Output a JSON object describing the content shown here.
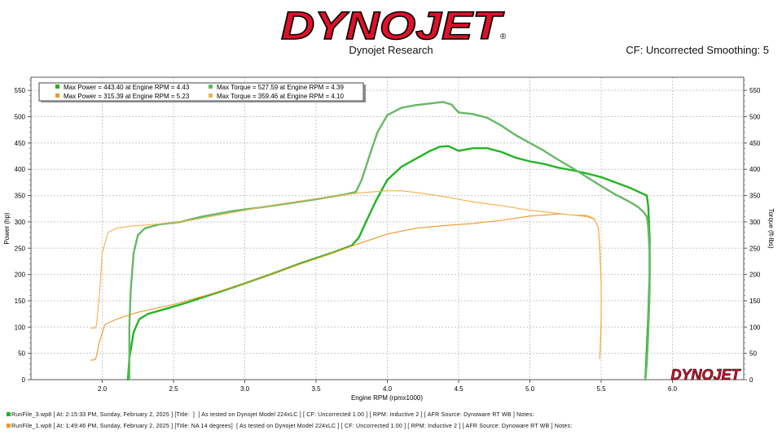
{
  "header": {
    "logo_text": "DYNOJET",
    "subtitle": "Dynojet Research",
    "cf_text": "CF: Uncorrected Smoothing: 5"
  },
  "colors": {
    "run3": "#22b422",
    "run3_torque": "#66b866",
    "run1": "#f0962a",
    "run1_torque": "#f5b04a",
    "logo_red": "#e0102a",
    "grid": "#c8c8c8"
  },
  "legend": [
    {
      "text": "Max Power = 443.40 at Engine RPM = 4.43",
      "color": "#22b422"
    },
    {
      "text": "Max Torque = 527.59 at Engine RPM = 4.39",
      "color": "#66b866"
    },
    {
      "text": "Max Power = 315.39 at Engine RPM = 5.23",
      "color": "#f0962a"
    },
    {
      "text": "Max Torque = 359.46 at Engine RPM = 4.10",
      "color": "#f5b04a"
    }
  ],
  "chart_data": {
    "type": "line",
    "xlabel": "Engine RPM (rpmx1000)",
    "ylabel": "Power (hp)",
    "ylabel_right": "Torque (ft-lbs)",
    "xlim": [
      1.5,
      6.5
    ],
    "ylim": [
      0,
      575
    ],
    "x_ticks": [
      2.0,
      2.5,
      3.0,
      3.5,
      4.0,
      4.5,
      5.0,
      5.5,
      6.0
    ],
    "y_ticks": [
      0,
      50,
      100,
      150,
      200,
      250,
      300,
      350,
      400,
      450,
      500,
      550
    ],
    "grid": true,
    "legend_position": "top-left",
    "watermark": "DYNOJET",
    "series": [
      {
        "name": "RunFile_3 Power",
        "axis": "left",
        "color": "#22b422",
        "points": [
          [
            2.18,
            0
          ],
          [
            2.19,
            40
          ],
          [
            2.22,
            90
          ],
          [
            2.26,
            115
          ],
          [
            2.32,
            125
          ],
          [
            2.45,
            135
          ],
          [
            2.6,
            147
          ],
          [
            2.8,
            165
          ],
          [
            3.0,
            183
          ],
          [
            3.2,
            202
          ],
          [
            3.4,
            222
          ],
          [
            3.6,
            240
          ],
          [
            3.75,
            255
          ],
          [
            3.8,
            270
          ],
          [
            3.85,
            300
          ],
          [
            3.92,
            340
          ],
          [
            4.0,
            380
          ],
          [
            4.1,
            405
          ],
          [
            4.2,
            420
          ],
          [
            4.3,
            435
          ],
          [
            4.37,
            443
          ],
          [
            4.43,
            444
          ],
          [
            4.5,
            435
          ],
          [
            4.6,
            440
          ],
          [
            4.7,
            440
          ],
          [
            4.8,
            433
          ],
          [
            4.9,
            422
          ],
          [
            5.0,
            415
          ],
          [
            5.1,
            410
          ],
          [
            5.2,
            403
          ],
          [
            5.3,
            398
          ],
          [
            5.4,
            392
          ],
          [
            5.5,
            385
          ],
          [
            5.6,
            375
          ],
          [
            5.7,
            365
          ],
          [
            5.78,
            355
          ],
          [
            5.82,
            350
          ],
          [
            5.83,
            330
          ],
          [
            5.84,
            270
          ],
          [
            5.84,
            200
          ],
          [
            5.83,
            120
          ],
          [
            5.82,
            60
          ],
          [
            5.81,
            0
          ]
        ]
      },
      {
        "name": "RunFile_3 Torque",
        "axis": "right",
        "color": "#66b866",
        "points": [
          [
            2.19,
            0
          ],
          [
            2.19,
            100
          ],
          [
            2.2,
            170
          ],
          [
            2.22,
            240
          ],
          [
            2.25,
            275
          ],
          [
            2.3,
            288
          ],
          [
            2.4,
            295
          ],
          [
            2.55,
            300
          ],
          [
            2.7,
            310
          ],
          [
            2.9,
            320
          ],
          [
            3.1,
            327
          ],
          [
            3.3,
            335
          ],
          [
            3.5,
            343
          ],
          [
            3.7,
            352
          ],
          [
            3.78,
            357
          ],
          [
            3.82,
            380
          ],
          [
            3.88,
            430
          ],
          [
            3.93,
            470
          ],
          [
            4.0,
            503
          ],
          [
            4.1,
            517
          ],
          [
            4.2,
            522
          ],
          [
            4.3,
            525
          ],
          [
            4.39,
            528
          ],
          [
            4.45,
            523
          ],
          [
            4.5,
            508
          ],
          [
            4.6,
            505
          ],
          [
            4.7,
            498
          ],
          [
            4.8,
            483
          ],
          [
            4.9,
            465
          ],
          [
            5.0,
            450
          ],
          [
            5.1,
            435
          ],
          [
            5.2,
            418
          ],
          [
            5.3,
            402
          ],
          [
            5.4,
            385
          ],
          [
            5.5,
            368
          ],
          [
            5.6,
            352
          ],
          [
            5.7,
            338
          ],
          [
            5.76,
            328
          ],
          [
            5.8,
            318
          ],
          [
            5.82,
            310
          ],
          [
            5.83,
            290
          ],
          [
            5.84,
            240
          ],
          [
            5.84,
            170
          ],
          [
            5.83,
            90
          ],
          [
            5.82,
            30
          ],
          [
            5.81,
            0
          ]
        ]
      },
      {
        "name": "RunFile_1 Power",
        "axis": "left",
        "color": "#f0962a",
        "points": [
          [
            1.92,
            37
          ],
          [
            1.95,
            38
          ],
          [
            1.96,
            45
          ],
          [
            1.98,
            72
          ],
          [
            2.02,
            105
          ],
          [
            2.1,
            115
          ],
          [
            2.25,
            128
          ],
          [
            2.5,
            143
          ],
          [
            2.75,
            162
          ],
          [
            3.0,
            183
          ],
          [
            3.25,
            207
          ],
          [
            3.5,
            230
          ],
          [
            3.75,
            254
          ],
          [
            4.0,
            277
          ],
          [
            4.2,
            288
          ],
          [
            4.4,
            293
          ],
          [
            4.6,
            297
          ],
          [
            4.8,
            303
          ],
          [
            5.0,
            311
          ],
          [
            5.2,
            315
          ],
          [
            5.23,
            315
          ],
          [
            5.3,
            313
          ],
          [
            5.4,
            312
          ],
          [
            5.45,
            306
          ],
          [
            5.48,
            290
          ],
          [
            5.49,
            250
          ],
          [
            5.5,
            180
          ],
          [
            5.5,
            100
          ],
          [
            5.49,
            40
          ]
        ]
      },
      {
        "name": "RunFile_1 Torque",
        "axis": "right",
        "color": "#f5b04a",
        "points": [
          [
            1.92,
            98
          ],
          [
            1.95,
            98
          ],
          [
            1.96,
            105
          ],
          [
            1.98,
            160
          ],
          [
            2.0,
            240
          ],
          [
            2.04,
            280
          ],
          [
            2.1,
            288
          ],
          [
            2.2,
            292
          ],
          [
            2.4,
            296
          ],
          [
            2.6,
            302
          ],
          [
            2.8,
            312
          ],
          [
            3.0,
            322
          ],
          [
            3.2,
            332
          ],
          [
            3.4,
            340
          ],
          [
            3.6,
            348
          ],
          [
            3.8,
            355
          ],
          [
            4.0,
            359
          ],
          [
            4.1,
            359
          ],
          [
            4.2,
            356
          ],
          [
            4.4,
            348
          ],
          [
            4.6,
            338
          ],
          [
            4.8,
            331
          ],
          [
            5.0,
            322
          ],
          [
            5.2,
            316
          ],
          [
            5.3,
            313
          ],
          [
            5.4,
            310
          ],
          [
            5.45,
            305
          ],
          [
            5.48,
            290
          ],
          [
            5.49,
            250
          ],
          [
            5.5,
            190
          ],
          [
            5.5,
            120
          ],
          [
            5.49,
            40
          ]
        ]
      }
    ]
  },
  "footer": {
    "line1": "RunFile_3.wp8 [ At: 2:15:33 PM, Sunday, February 2, 2025 ] [Title:  ]  [ As tested on Dynojet Model 224xLC ] [ CF: Uncorrected 1.00 ] [ RPM: Inductive 2 ] [ AFR Source: Dynoware RT WB ] Notes:",
    "line2": "RunFile_1.wp8 [ At: 1:49:46 PM, Sunday, February 2, 2025 ] [Title: NA 14 degrees]  [ As tested on Dynojet Model 224xLC ] [ CF: Uncorrected 1.00 ] [ RPM: Inductive 2 ] [ AFR Source: Dynoware RT WB ] Notes:"
  }
}
